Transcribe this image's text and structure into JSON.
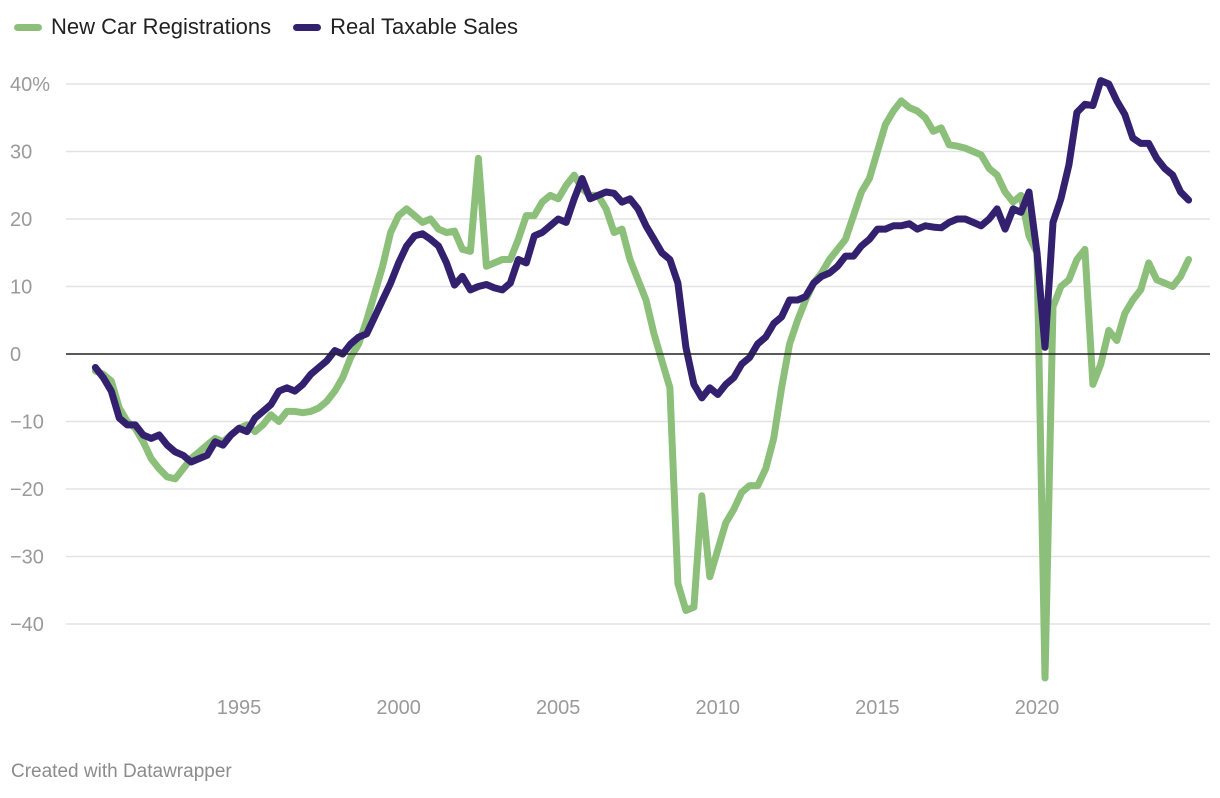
{
  "chart_data": {
    "type": "line",
    "title": "",
    "xlabel": "",
    "ylabel": "",
    "credit": "Created with Datawrapper",
    "xlim": [
      1990,
      2025.2
    ],
    "ylim": [
      -48,
      40
    ],
    "y_ticks": [
      {
        "value": 40,
        "label": "40%"
      },
      {
        "value": 30,
        "label": "30"
      },
      {
        "value": 20,
        "label": "20"
      },
      {
        "value": 10,
        "label": "10"
      },
      {
        "value": 0,
        "label": "0"
      },
      {
        "value": -10,
        "label": "−10"
      },
      {
        "value": -20,
        "label": "−20"
      },
      {
        "value": -30,
        "label": "−30"
      },
      {
        "value": -40,
        "label": "−40"
      }
    ],
    "x_ticks": [
      {
        "value": 1995,
        "label": "1995"
      },
      {
        "value": 2000,
        "label": "2000"
      },
      {
        "value": 2005,
        "label": "2005"
      },
      {
        "value": 2010,
        "label": "2010"
      },
      {
        "value": 2015,
        "label": "2015"
      },
      {
        "value": 2020,
        "label": "2020"
      }
    ],
    "series": [
      {
        "name": "New Car Registrations",
        "color": "#8cc07a",
        "points": [
          [
            1990.5,
            -2.5
          ],
          [
            1990.75,
            -3.0
          ],
          [
            1991.0,
            -4.0
          ],
          [
            1991.25,
            -8.0
          ],
          [
            1991.5,
            -10.0
          ],
          [
            1991.75,
            -11.0
          ],
          [
            1992.0,
            -13.0
          ],
          [
            1992.25,
            -15.5
          ],
          [
            1992.5,
            -17.0
          ],
          [
            1992.75,
            -18.2
          ],
          [
            1993.0,
            -18.5
          ],
          [
            1993.25,
            -17.0
          ],
          [
            1993.5,
            -15.5
          ],
          [
            1993.75,
            -14.5
          ],
          [
            1994.0,
            -13.5
          ],
          [
            1994.25,
            -12.5
          ],
          [
            1994.5,
            -13.0
          ],
          [
            1994.75,
            -12.0
          ],
          [
            1995.0,
            -11.0
          ],
          [
            1995.25,
            -10.5
          ],
          [
            1995.5,
            -11.5
          ],
          [
            1995.75,
            -10.5
          ],
          [
            1996.0,
            -9.0
          ],
          [
            1996.25,
            -10.0
          ],
          [
            1996.5,
            -8.5
          ],
          [
            1996.75,
            -8.5
          ],
          [
            1997.0,
            -8.7
          ],
          [
            1997.25,
            -8.5
          ],
          [
            1997.5,
            -8.0
          ],
          [
            1997.75,
            -7.0
          ],
          [
            1998.0,
            -5.5
          ],
          [
            1998.25,
            -3.5
          ],
          [
            1998.5,
            -0.5
          ],
          [
            1998.75,
            1.5
          ],
          [
            1999.0,
            5.0
          ],
          [
            1999.25,
            9.0
          ],
          [
            1999.5,
            13.0
          ],
          [
            1999.75,
            18.0
          ],
          [
            2000.0,
            20.5
          ],
          [
            2000.25,
            21.5
          ],
          [
            2000.5,
            20.5
          ],
          [
            2000.75,
            19.5
          ],
          [
            2001.0,
            20.0
          ],
          [
            2001.25,
            18.5
          ],
          [
            2001.5,
            18.0
          ],
          [
            2001.75,
            18.2
          ],
          [
            2002.0,
            15.5
          ],
          [
            2002.25,
            15.2
          ],
          [
            2002.5,
            29.0
          ],
          [
            2002.75,
            13.0
          ],
          [
            2003.0,
            13.5
          ],
          [
            2003.25,
            14.0
          ],
          [
            2003.5,
            14.0
          ],
          [
            2003.75,
            17.0
          ],
          [
            2004.0,
            20.5
          ],
          [
            2004.25,
            20.5
          ],
          [
            2004.5,
            22.5
          ],
          [
            2004.75,
            23.5
          ],
          [
            2005.0,
            23.0
          ],
          [
            2005.25,
            25.0
          ],
          [
            2005.5,
            26.5
          ],
          [
            2005.75,
            24.5
          ],
          [
            2006.0,
            23.5
          ],
          [
            2006.25,
            23.5
          ],
          [
            2006.5,
            21.5
          ],
          [
            2006.75,
            18.0
          ],
          [
            2007.0,
            18.5
          ],
          [
            2007.25,
            14.0
          ],
          [
            2007.5,
            11.0
          ],
          [
            2007.75,
            8.0
          ],
          [
            2008.0,
            3.0
          ],
          [
            2008.25,
            -1.0
          ],
          [
            2008.5,
            -5.0
          ],
          [
            2008.75,
            -34.0
          ],
          [
            2009.0,
            -38.0
          ],
          [
            2009.25,
            -37.5
          ],
          [
            2009.5,
            -21.0
          ],
          [
            2009.75,
            -33.0
          ],
          [
            2010.0,
            -29.0
          ],
          [
            2010.25,
            -25.0
          ],
          [
            2010.5,
            -23.0
          ],
          [
            2010.75,
            -20.5
          ],
          [
            2011.0,
            -19.5
          ],
          [
            2011.25,
            -19.5
          ],
          [
            2011.5,
            -17.0
          ],
          [
            2011.75,
            -12.5
          ],
          [
            2012.0,
            -5.0
          ],
          [
            2012.25,
            1.5
          ],
          [
            2012.5,
            5.0
          ],
          [
            2012.75,
            8.0
          ],
          [
            2013.0,
            10.5
          ],
          [
            2013.25,
            12.0
          ],
          [
            2013.5,
            14.0
          ],
          [
            2013.75,
            15.5
          ],
          [
            2014.0,
            17.0
          ],
          [
            2014.25,
            20.5
          ],
          [
            2014.5,
            24.0
          ],
          [
            2014.75,
            26.0
          ],
          [
            2015.0,
            30.0
          ],
          [
            2015.25,
            34.0
          ],
          [
            2015.5,
            36.0
          ],
          [
            2015.75,
            37.5
          ],
          [
            2016.0,
            36.5
          ],
          [
            2016.25,
            36.0
          ],
          [
            2016.5,
            35.0
          ],
          [
            2016.75,
            33.0
          ],
          [
            2017.0,
            33.5
          ],
          [
            2017.25,
            31.0
          ],
          [
            2017.5,
            30.8
          ],
          [
            2017.75,
            30.5
          ],
          [
            2018.0,
            30.0
          ],
          [
            2018.25,
            29.5
          ],
          [
            2018.5,
            27.5
          ],
          [
            2018.75,
            26.5
          ],
          [
            2019.0,
            24.0
          ],
          [
            2019.25,
            22.5
          ],
          [
            2019.5,
            23.5
          ],
          [
            2019.75,
            17.5
          ],
          [
            2020.0,
            15.0
          ],
          [
            2020.25,
            -48.0
          ],
          [
            2020.5,
            7.0
          ],
          [
            2020.75,
            10.0
          ],
          [
            2021.0,
            11.0
          ],
          [
            2021.25,
            14.0
          ],
          [
            2021.5,
            15.5
          ],
          [
            2021.75,
            -4.5
          ],
          [
            2022.0,
            -1.5
          ],
          [
            2022.25,
            3.5
          ],
          [
            2022.5,
            2.0
          ],
          [
            2022.75,
            6.0
          ],
          [
            2023.0,
            8.0
          ],
          [
            2023.25,
            9.5
          ],
          [
            2023.5,
            13.5
          ],
          [
            2023.75,
            11.0
          ],
          [
            2024.0,
            10.5
          ],
          [
            2024.25,
            10.0
          ],
          [
            2024.5,
            11.5
          ],
          [
            2024.75,
            14.0
          ]
        ]
      },
      {
        "name": "Real Taxable Sales",
        "color": "#33206e",
        "points": [
          [
            1990.5,
            -2.0
          ],
          [
            1990.75,
            -3.5
          ],
          [
            1991.0,
            -5.5
          ],
          [
            1991.25,
            -9.5
          ],
          [
            1991.5,
            -10.5
          ],
          [
            1991.75,
            -10.5
          ],
          [
            1992.0,
            -12.0
          ],
          [
            1992.25,
            -12.5
          ],
          [
            1992.5,
            -12.0
          ],
          [
            1992.75,
            -13.5
          ],
          [
            1993.0,
            -14.5
          ],
          [
            1993.25,
            -15.0
          ],
          [
            1993.5,
            -16.0
          ],
          [
            1993.75,
            -15.5
          ],
          [
            1994.0,
            -15.0
          ],
          [
            1994.25,
            -13.0
          ],
          [
            1994.5,
            -13.5
          ],
          [
            1994.75,
            -12.0
          ],
          [
            1995.0,
            -11.0
          ],
          [
            1995.25,
            -11.5
          ],
          [
            1995.5,
            -9.5
          ],
          [
            1995.75,
            -8.5
          ],
          [
            1996.0,
            -7.5
          ],
          [
            1996.25,
            -5.5
          ],
          [
            1996.5,
            -5.0
          ],
          [
            1996.75,
            -5.5
          ],
          [
            1997.0,
            -4.5
          ],
          [
            1997.25,
            -3.0
          ],
          [
            1997.5,
            -2.0
          ],
          [
            1997.75,
            -1.0
          ],
          [
            1998.0,
            0.5
          ],
          [
            1998.25,
            0.0
          ],
          [
            1998.5,
            1.5
          ],
          [
            1998.75,
            2.5
          ],
          [
            1999.0,
            3.0
          ],
          [
            1999.25,
            5.5
          ],
          [
            1999.5,
            8.0
          ],
          [
            1999.75,
            10.5
          ],
          [
            2000.0,
            13.5
          ],
          [
            2000.25,
            16.0
          ],
          [
            2000.5,
            17.5
          ],
          [
            2000.75,
            17.8
          ],
          [
            2001.0,
            17.0
          ],
          [
            2001.25,
            16.0
          ],
          [
            2001.5,
            13.5
          ],
          [
            2001.75,
            10.2
          ],
          [
            2002.0,
            11.5
          ],
          [
            2002.25,
            9.5
          ],
          [
            2002.5,
            10.0
          ],
          [
            2002.75,
            10.3
          ],
          [
            2003.0,
            9.8
          ],
          [
            2003.25,
            9.5
          ],
          [
            2003.5,
            10.5
          ],
          [
            2003.75,
            14.0
          ],
          [
            2004.0,
            13.5
          ],
          [
            2004.25,
            17.5
          ],
          [
            2004.5,
            18.0
          ],
          [
            2004.75,
            19.0
          ],
          [
            2005.0,
            20.0
          ],
          [
            2005.25,
            19.5
          ],
          [
            2005.5,
            23.0
          ],
          [
            2005.75,
            26.0
          ],
          [
            2006.0,
            23.0
          ],
          [
            2006.25,
            23.5
          ],
          [
            2006.5,
            24.0
          ],
          [
            2006.75,
            23.8
          ],
          [
            2007.0,
            22.5
          ],
          [
            2007.25,
            23.0
          ],
          [
            2007.5,
            21.5
          ],
          [
            2007.75,
            19.0
          ],
          [
            2008.0,
            17.0
          ],
          [
            2008.25,
            15.0
          ],
          [
            2008.5,
            14.0
          ],
          [
            2008.75,
            10.5
          ],
          [
            2009.0,
            1.0
          ],
          [
            2009.25,
            -4.5
          ],
          [
            2009.5,
            -6.5
          ],
          [
            2009.75,
            -5.0
          ],
          [
            2010.0,
            -6.0
          ],
          [
            2010.25,
            -4.5
          ],
          [
            2010.5,
            -3.5
          ],
          [
            2010.75,
            -1.5
          ],
          [
            2011.0,
            -0.5
          ],
          [
            2011.25,
            1.5
          ],
          [
            2011.5,
            2.5
          ],
          [
            2011.75,
            4.5
          ],
          [
            2012.0,
            5.5
          ],
          [
            2012.25,
            8.0
          ],
          [
            2012.5,
            8.0
          ],
          [
            2012.75,
            8.5
          ],
          [
            2013.0,
            10.5
          ],
          [
            2013.25,
            11.5
          ],
          [
            2013.5,
            12.0
          ],
          [
            2013.75,
            13.0
          ],
          [
            2014.0,
            14.5
          ],
          [
            2014.25,
            14.5
          ],
          [
            2014.5,
            16.0
          ],
          [
            2014.75,
            17.0
          ],
          [
            2015.0,
            18.5
          ],
          [
            2015.25,
            18.5
          ],
          [
            2015.5,
            19.0
          ],
          [
            2015.75,
            19.0
          ],
          [
            2016.0,
            19.3
          ],
          [
            2016.25,
            18.5
          ],
          [
            2016.5,
            19.0
          ],
          [
            2016.75,
            18.8
          ],
          [
            2017.0,
            18.7
          ],
          [
            2017.25,
            19.5
          ],
          [
            2017.5,
            20.0
          ],
          [
            2017.75,
            20.0
          ],
          [
            2018.0,
            19.5
          ],
          [
            2018.25,
            19.0
          ],
          [
            2018.5,
            20.0
          ],
          [
            2018.75,
            21.5
          ],
          [
            2019.0,
            18.5
          ],
          [
            2019.25,
            21.5
          ],
          [
            2019.5,
            21.0
          ],
          [
            2019.75,
            24.0
          ],
          [
            2020.0,
            15.0
          ],
          [
            2020.25,
            1.0
          ],
          [
            2020.5,
            19.5
          ],
          [
            2020.75,
            23.0
          ],
          [
            2021.0,
            28.0
          ],
          [
            2021.25,
            35.8
          ],
          [
            2021.5,
            37.0
          ],
          [
            2021.75,
            36.8
          ],
          [
            2022.0,
            40.5
          ],
          [
            2022.25,
            40.0
          ],
          [
            2022.5,
            37.5
          ],
          [
            2022.75,
            35.5
          ],
          [
            2023.0,
            32.0
          ],
          [
            2023.25,
            31.2
          ],
          [
            2023.5,
            31.2
          ],
          [
            2023.75,
            29.0
          ],
          [
            2024.0,
            27.5
          ],
          [
            2024.25,
            26.5
          ],
          [
            2024.5,
            24.0
          ],
          [
            2024.75,
            22.8
          ]
        ]
      }
    ]
  }
}
